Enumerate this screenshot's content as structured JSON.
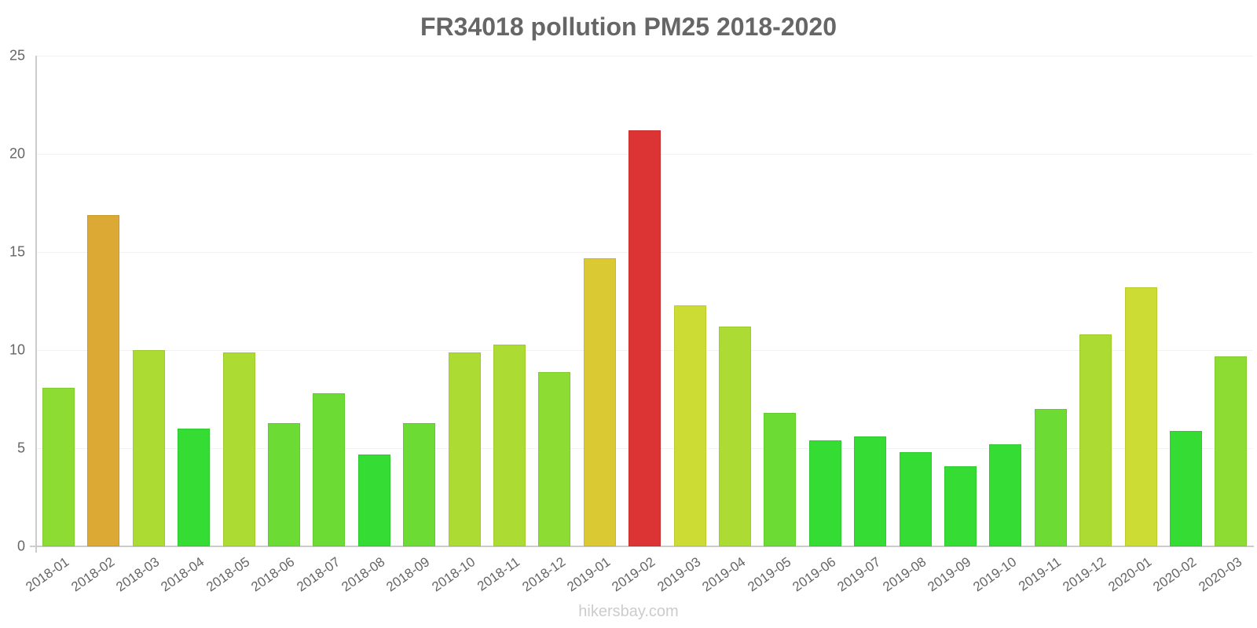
{
  "chart_data": {
    "type": "bar",
    "title": "FR34018 pollution PM25 2018-2020",
    "xlabel": "",
    "ylabel": "",
    "ylim": [
      0,
      25
    ],
    "yticks": [
      0,
      5,
      10,
      15,
      20,
      25
    ],
    "grid": true,
    "legend": null,
    "categories": [
      "2018-01",
      "2018-02",
      "2018-03",
      "2018-04",
      "2018-05",
      "2018-06",
      "2018-07",
      "2018-08",
      "2018-09",
      "2018-10",
      "2018-11",
      "2018-12",
      "2019-01",
      "2019-02",
      "2019-03",
      "2019-04",
      "2019-05",
      "2019-06",
      "2019-07",
      "2019-08",
      "2019-09",
      "2019-10",
      "2019-11",
      "2019-12",
      "2020-01",
      "2020-02",
      "2020-03"
    ],
    "values": [
      8.1,
      16.9,
      10.0,
      6.0,
      9.9,
      6.3,
      7.8,
      4.7,
      6.3,
      9.9,
      10.3,
      8.9,
      14.7,
      21.2,
      12.3,
      11.2,
      6.8,
      5.4,
      5.6,
      4.8,
      4.1,
      5.2,
      7.0,
      10.8,
      13.2,
      5.9,
      9.7
    ],
    "colors": [
      "#8cdc34",
      "#dba934",
      "#acdc34",
      "#34dc34",
      "#acdc34",
      "#6cdc34",
      "#6cdc34",
      "#34dc34",
      "#6cdc34",
      "#acdc34",
      "#acdc34",
      "#8cdc34",
      "#dbc934",
      "#dc3434",
      "#ccdc34",
      "#acdc34",
      "#6cdc34",
      "#34dc34",
      "#34dc34",
      "#34dc34",
      "#34dc34",
      "#34dc34",
      "#6cdc34",
      "#acdc34",
      "#ccdc34",
      "#34dc34",
      "#8cdc34"
    ]
  },
  "footer": "hikersbay.com"
}
